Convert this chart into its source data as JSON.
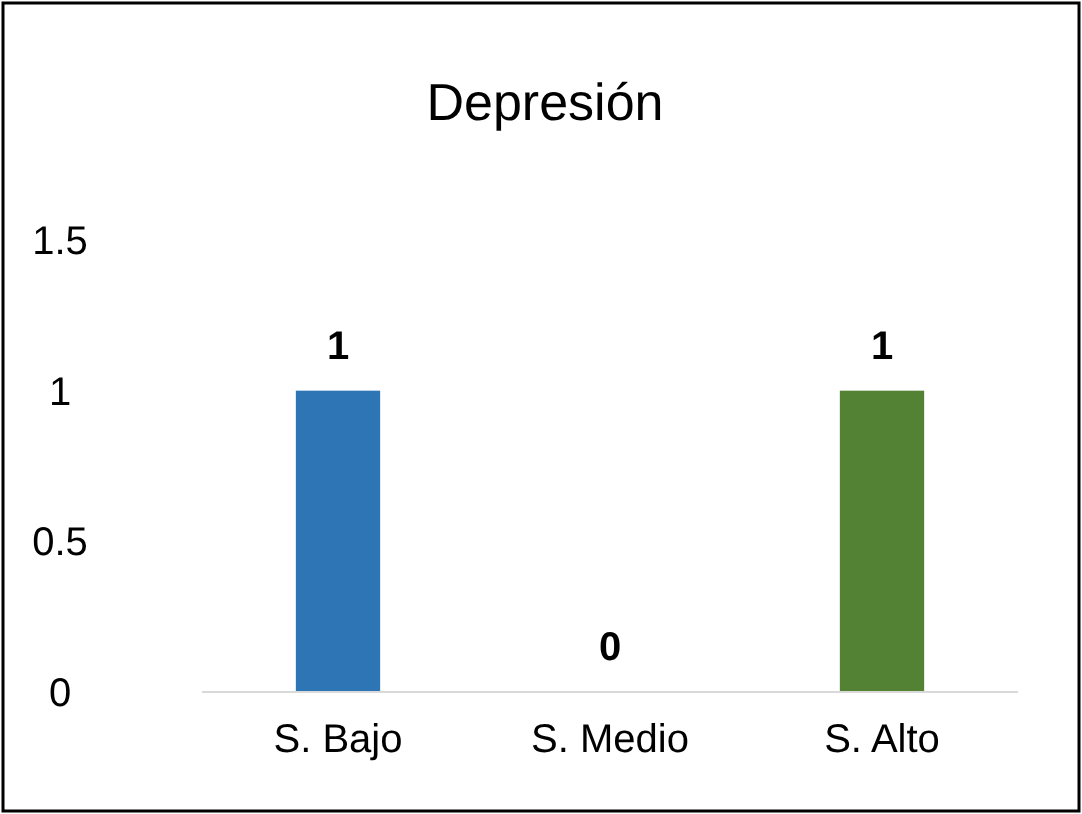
{
  "chart_data": {
    "type": "bar",
    "title": "Depresión",
    "categories": [
      "S. Bajo",
      "S. Medio",
      "S. Alto"
    ],
    "values": [
      1,
      0,
      1
    ],
    "colors": [
      "#2e75b6",
      "#ed7d31",
      "#548235"
    ],
    "ylim": [
      0,
      1.5
    ],
    "yticks": [
      0,
      0.5,
      1,
      1.5
    ],
    "data_labels": true
  }
}
